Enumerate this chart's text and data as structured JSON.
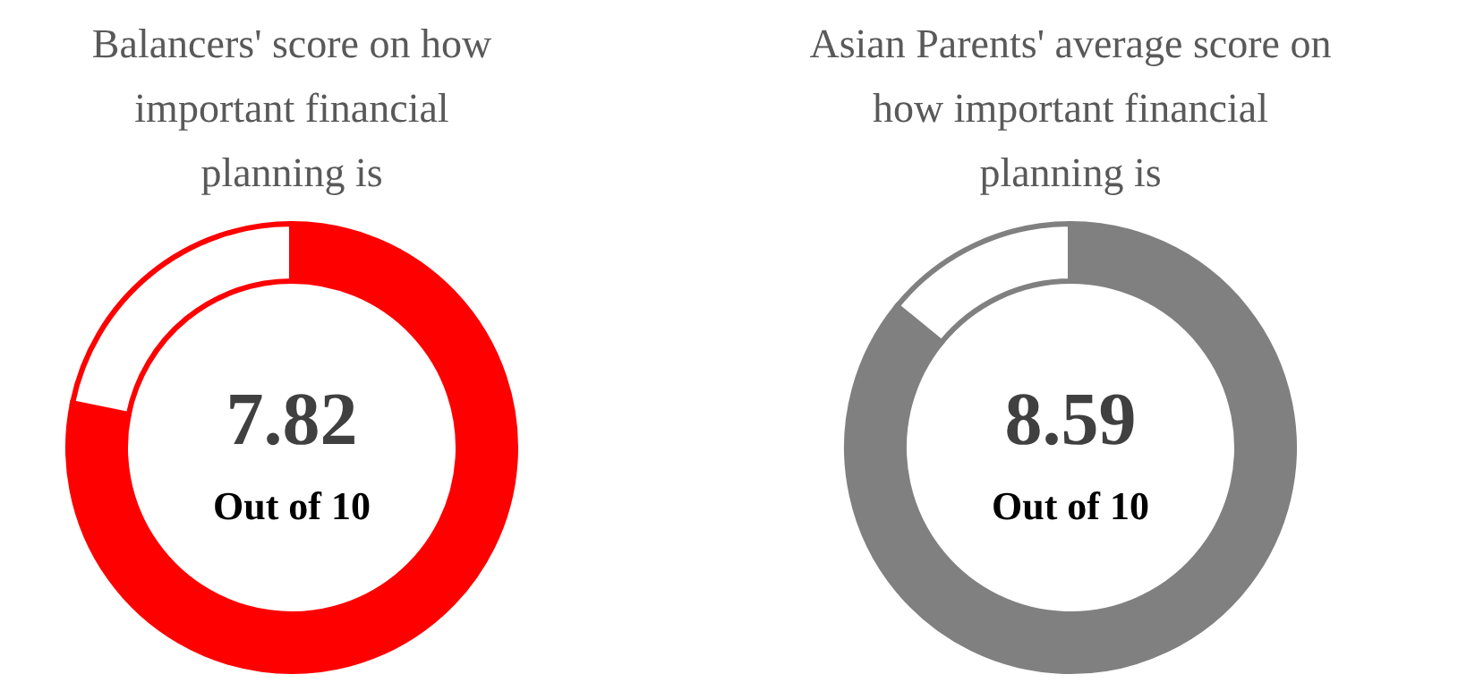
{
  "chart_data": [
    {
      "type": "donut",
      "title": "Balancers' score on how\nimportant financial\nplanning is",
      "categories": [
        null,
        null
      ],
      "values": [
        78.2,
        21.8
      ],
      "colors": [
        "#ff0000",
        "#ffffff"
      ],
      "annotations": [
        "7.82",
        "Out of 10"
      ]
    },
    {
      "type": "donut",
      "title": "Asian Parents' average score on\nhow important financial\nplanning is",
      "categories": [
        null,
        null
      ],
      "values": [
        85.9,
        14.1
      ],
      "colors": [
        "#808080",
        "#ffffff"
      ],
      "annotations": [
        "8.59",
        "Out of 10"
      ]
    }
  ]
}
